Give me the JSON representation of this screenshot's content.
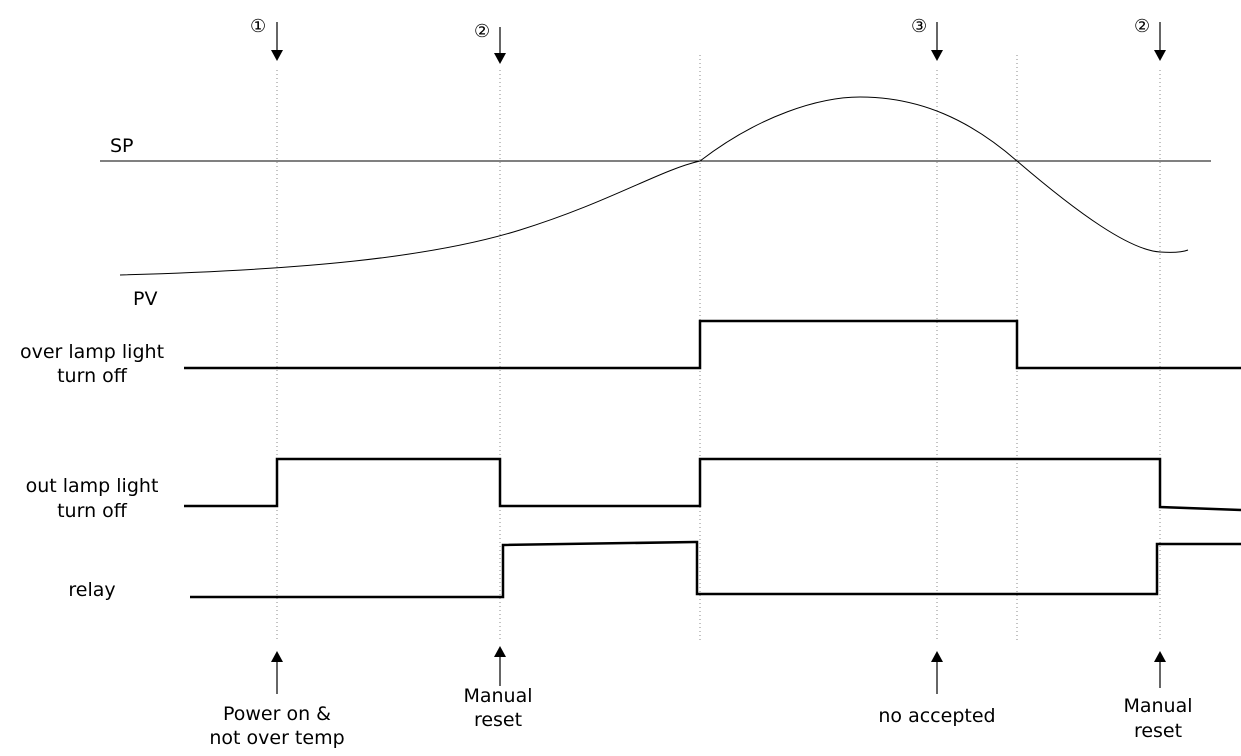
{
  "curve_labels": {
    "sp": "SP",
    "pv": "PV"
  },
  "signals": [
    {
      "id": "over-lamp",
      "label_lines": [
        "over lamp light",
        "turn off"
      ]
    },
    {
      "id": "out-lamp",
      "label_lines": [
        "out lamp light",
        "turn off"
      ]
    },
    {
      "id": "relay",
      "label_lines": [
        "relay"
      ]
    }
  ],
  "markers": [
    {
      "id": "1",
      "glyph": "①"
    },
    {
      "id": "2a",
      "glyph": "②"
    },
    {
      "id": "3",
      "glyph": "③"
    },
    {
      "id": "2b",
      "glyph": "②"
    }
  ],
  "events": [
    {
      "id": "power-on",
      "lines": [
        "Power on &",
        "not over temp"
      ]
    },
    {
      "id": "manual-reset-1",
      "lines": [
        "Manual",
        "reset"
      ]
    },
    {
      "id": "no-accepted",
      "lines": [
        "no accepted"
      ]
    },
    {
      "id": "manual-reset-2",
      "lines": [
        "Manual",
        "reset"
      ]
    }
  ]
}
